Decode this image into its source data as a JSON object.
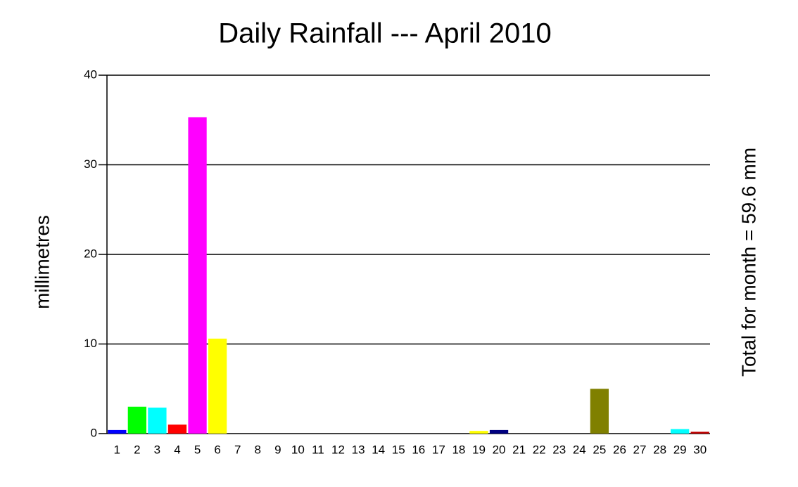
{
  "chart_data": {
    "type": "bar",
    "title": "Daily Rainfall --- April 2010",
    "y_label": "millimetres",
    "annotation": "Total for month = 59.6 mm",
    "categories": [
      "1",
      "2",
      "3",
      "4",
      "5",
      "6",
      "7",
      "8",
      "9",
      "10",
      "11",
      "12",
      "13",
      "14",
      "15",
      "16",
      "17",
      "18",
      "19",
      "20",
      "21",
      "22",
      "23",
      "24",
      "25",
      "26",
      "27",
      "28",
      "29",
      "30"
    ],
    "values": [
      0.4,
      3.0,
      2.9,
      1.0,
      35.3,
      10.6,
      0,
      0,
      0,
      0,
      0,
      0,
      0,
      0,
      0,
      0,
      0,
      0,
      0.3,
      0.4,
      0,
      0,
      0,
      0,
      5.0,
      0,
      0,
      0,
      0.5,
      0.2
    ],
    "colors": [
      "#0000ff",
      "#00ff00",
      "#00ffff",
      "#ff0000",
      "#ff00ff",
      "#ffff00",
      "#000080",
      "#008000",
      "#008080",
      "#800000",
      "#800080",
      "#808000",
      "#0000ff",
      "#00ff00",
      "#00ffff",
      "#ff0000",
      "#ff00ff",
      "#ffff00",
      "#ffff00",
      "#000080",
      "#008000",
      "#008080",
      "#800000",
      "#800080",
      "#808000",
      "#0000ff",
      "#00ff00",
      "#00ffff",
      "#00ffff",
      "#c00000"
    ],
    "ylim": [
      0,
      40
    ],
    "yticks": [
      0,
      10,
      20,
      30,
      40
    ],
    "grid": true
  }
}
